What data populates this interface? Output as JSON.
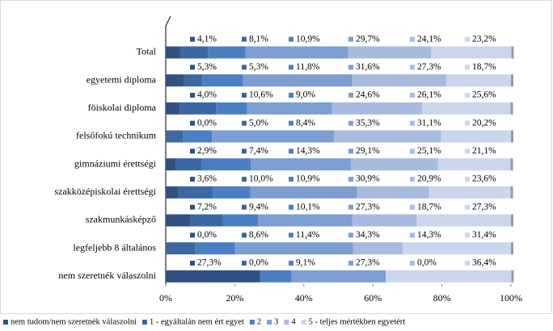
{
  "chart_data": {
    "type": "bar",
    "orientation": "horizontal",
    "stacked": true,
    "categories": [
      "Total",
      "egyetemi diploma",
      "föiskolai diploma",
      "felsőfokú technikum",
      "gimnáziumi érettségi",
      "szakközépiskolai érettségi",
      "szakmunkásképző",
      "legfeljebb 8 általános",
      "nem szeretnék válaszolni"
    ],
    "series": [
      {
        "name": "nem tudom/nem szeretnék válaszolni",
        "color": "#2f5283",
        "values": [
          4.1,
          5.3,
          4.0,
          0.0,
          2.9,
          3.6,
          7.2,
          0.0,
          27.3
        ],
        "value_labels": [
          "4,1%",
          "5,3%",
          "4,0%",
          "0,0%",
          "2,9%",
          "3,6%",
          "7,2%",
          "0,0%",
          "27,3%"
        ]
      },
      {
        "name": "1 - egyáltalán nem ért egyet",
        "color": "#3b67a3",
        "values": [
          8.1,
          5.3,
          10.6,
          5.0,
          7.4,
          10.0,
          9.4,
          8.6,
          0.0
        ],
        "value_labels": [
          "8,1%",
          "5,3%",
          "10,6%",
          "5,0%",
          "7,4%",
          "10,0%",
          "9,4%",
          "8,6%",
          "0,0%"
        ]
      },
      {
        "name": "2",
        "color": "#4b7fc3",
        "values": [
          10.9,
          11.8,
          9.0,
          8.4,
          14.3,
          10.9,
          10.1,
          11.4,
          9.1
        ],
        "value_labels": [
          "10,9%",
          "11,8%",
          "9,0%",
          "8,4%",
          "14,3%",
          "10,9%",
          "10,1%",
          "11,4%",
          "9,1%"
        ]
      },
      {
        "name": "3",
        "color": "#7c9ed0",
        "values": [
          29.7,
          31.6,
          24.6,
          35.3,
          29.1,
          30.9,
          27.3,
          34.3,
          27.3
        ],
        "value_labels": [
          "29,7%",
          "31,6%",
          "24,6%",
          "35,3%",
          "29,1%",
          "30,9%",
          "27,3%",
          "34,3%",
          "27,3%"
        ]
      },
      {
        "name": "4",
        "color": "#a6bbdf",
        "values": [
          24.1,
          27.3,
          26.1,
          31.1,
          25.1,
          20.9,
          18.7,
          14.3,
          0.0
        ],
        "value_labels": [
          "24,1%",
          "27,3%",
          "26,1%",
          "31,1%",
          "25,1%",
          "20,9%",
          "18,7%",
          "14,3%",
          "0,0%"
        ]
      },
      {
        "name": "5 - teljes mértékben egyetért",
        "color": "#cad6ee",
        "values": [
          23.2,
          18.7,
          25.6,
          20.2,
          21.1,
          23.6,
          27.3,
          31.4,
          36.4
        ],
        "value_labels": [
          "23,2%",
          "18,7%",
          "25,6%",
          "20,2%",
          "21,1%",
          "23,6%",
          "27,3%",
          "31,4%",
          "36,4%"
        ]
      }
    ],
    "xlim": [
      0,
      100
    ],
    "xticks": [
      {
        "value": 0,
        "label": "0%"
      },
      {
        "value": 20,
        "label": "20%"
      },
      {
        "value": 40,
        "label": "40%"
      },
      {
        "value": 60,
        "label": "60%"
      },
      {
        "value": 80,
        "label": "80%"
      },
      {
        "value": 100,
        "label": "100%"
      }
    ],
    "legend": "bottom"
  }
}
